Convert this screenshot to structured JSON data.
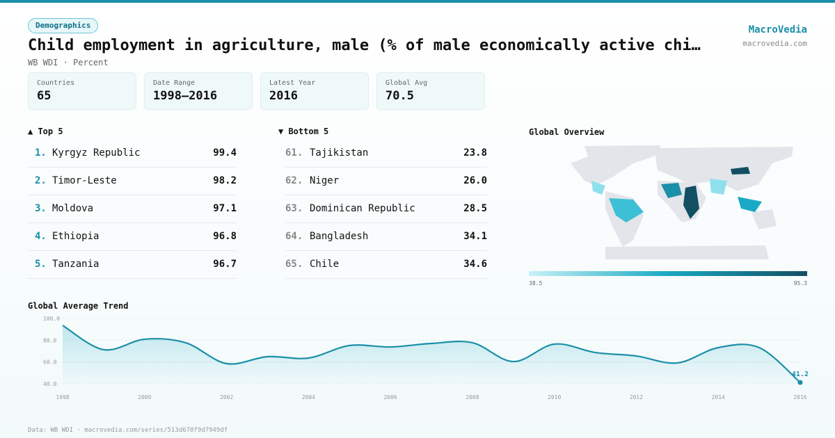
{
  "header": {
    "tag": "Demographics",
    "title": "Child employment in agriculture, male (% of male economically active chi…",
    "subtitle": "WB WDI · Percent",
    "brand": "MacroVedia",
    "site": "macrovedia.com"
  },
  "stats": [
    {
      "label": "Countries",
      "value": "65"
    },
    {
      "label": "Date Range",
      "value": "1998–2016"
    },
    {
      "label": "Latest Year",
      "value": "2016"
    },
    {
      "label": "Global Avg",
      "value": "70.5"
    }
  ],
  "top": {
    "title": "▲ Top 5",
    "rows": [
      [
        "1.",
        "Kyrgyz Republic",
        "99.4"
      ],
      [
        "2.",
        "Timor-Leste",
        "98.2"
      ],
      [
        "3.",
        "Moldova",
        "97.1"
      ],
      [
        "4.",
        "Ethiopia",
        "96.8"
      ],
      [
        "5.",
        "Tanzania",
        "96.7"
      ]
    ]
  },
  "bottom": {
    "title": "▼ Bottom 5",
    "rows": [
      [
        "61.",
        "Tajikistan",
        "23.8"
      ],
      [
        "62.",
        "Niger",
        "26.0"
      ],
      [
        "63.",
        "Dominican Republic",
        "28.5"
      ],
      [
        "64.",
        "Bangladesh",
        "34.1"
      ],
      [
        "65.",
        "Chile",
        "34.6"
      ]
    ]
  },
  "map": {
    "title": "Global Overview",
    "min": "38.5",
    "max": "95.3"
  },
  "chart_data": {
    "type": "line",
    "title": "Global Average Trend",
    "x": [
      1998,
      1999,
      2000,
      2001,
      2002,
      2003,
      2004,
      2005,
      2006,
      2007,
      2008,
      2009,
      2010,
      2011,
      2012,
      2013,
      2014,
      2015,
      2016
    ],
    "values": [
      93.6,
      71.3,
      80.9,
      77.7,
      58.5,
      64.9,
      63.6,
      75.1,
      73.8,
      77.0,
      77.7,
      60.4,
      76.4,
      68.7,
      65.5,
      59.1,
      73.2,
      73.2,
      41.2
    ],
    "color": "#1a8fa8",
    "xlim": [
      1998,
      2016
    ],
    "xticks": [
      1998,
      2000,
      2002,
      2004,
      2006,
      2008,
      2010,
      2012,
      2014,
      2016
    ],
    "ylim": [
      40,
      100
    ],
    "yticks": [
      {
        "value": 40,
        "label": "40.0"
      },
      {
        "value": 60,
        "label": "60.0"
      },
      {
        "value": 80,
        "label": "80.0"
      },
      {
        "value": 100,
        "label": "100.0"
      }
    ],
    "grid": true
  },
  "footer": "Data: WB WDI · macrovedia.com/series/513d678f9d7949df"
}
